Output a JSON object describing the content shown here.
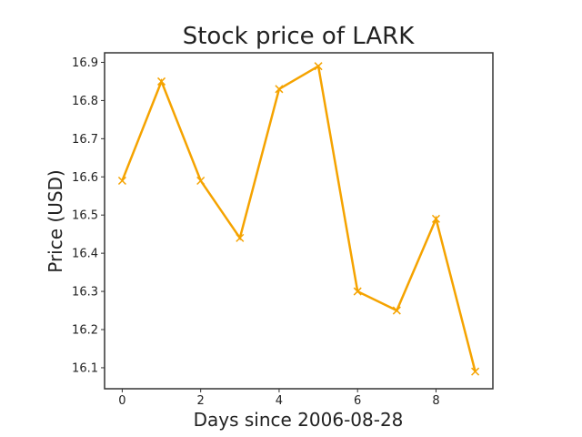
{
  "chart_data": {
    "type": "line",
    "title": "Stock price of LARK",
    "xlabel": "Days since 2006-08-28",
    "ylabel": "Price (USD)",
    "x": [
      0,
      1,
      2,
      3,
      4,
      5,
      6,
      7,
      8,
      9
    ],
    "series": [
      {
        "values": [
          16.59,
          16.85,
          16.59,
          16.44,
          16.83,
          16.89,
          16.3,
          16.25,
          16.49,
          16.09
        ],
        "color": "#f5a300",
        "marker": "x"
      }
    ],
    "xlim": [
      -0.45,
      9.45
    ],
    "ylim": [
      16.045,
      16.925
    ],
    "xticks": [
      0,
      2,
      4,
      6,
      8
    ],
    "yticks": [
      16.1,
      16.2,
      16.3,
      16.4,
      16.5,
      16.6,
      16.7,
      16.8,
      16.9
    ],
    "grid": false,
    "legend": "none"
  }
}
